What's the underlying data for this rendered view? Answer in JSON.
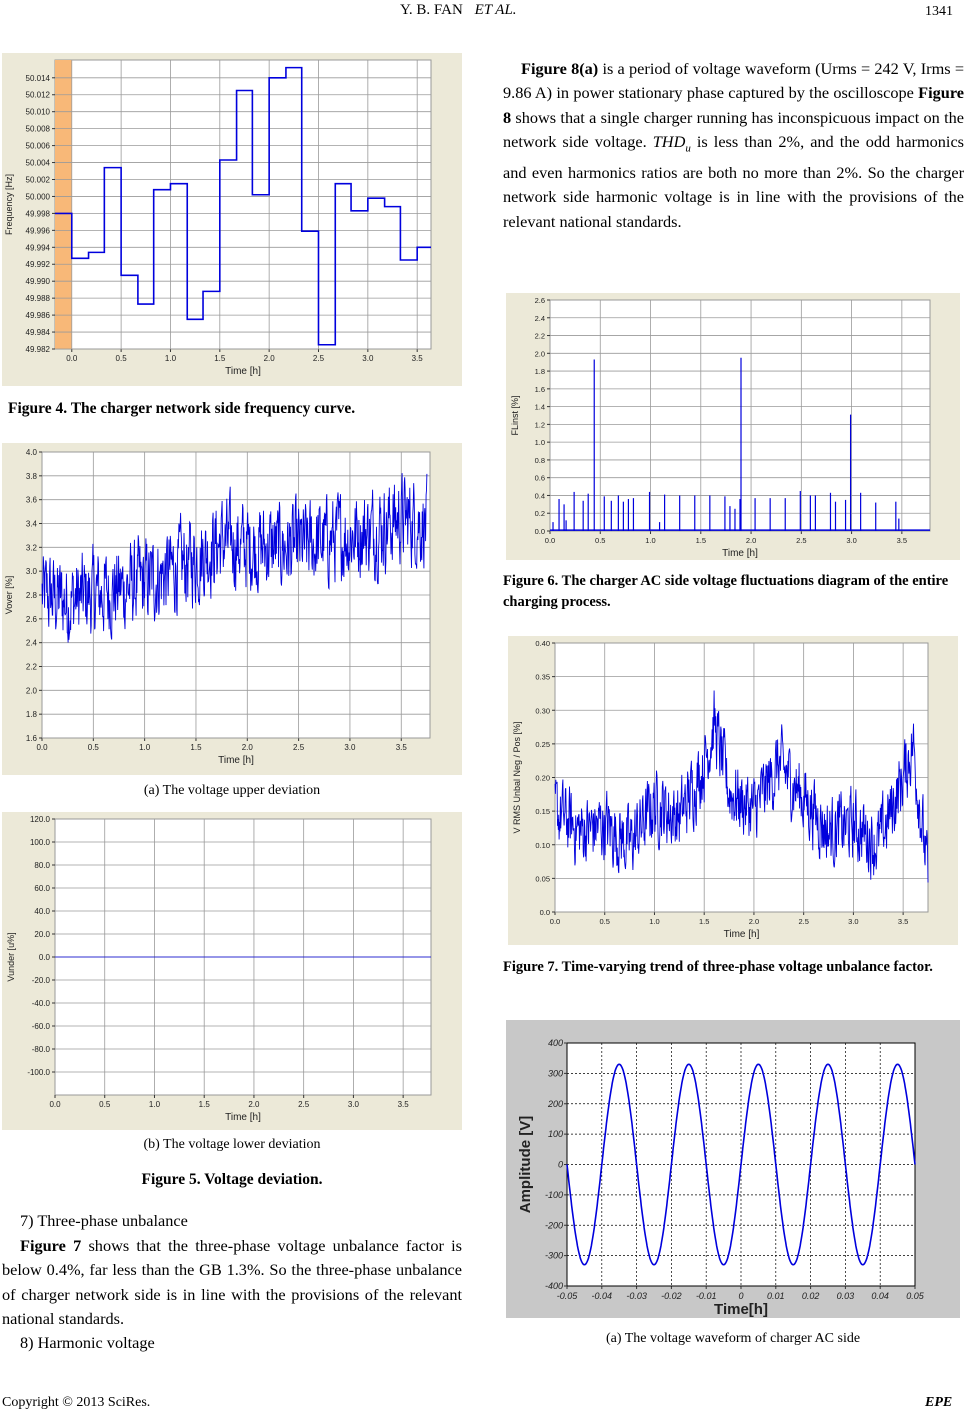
{
  "header": {
    "authors": "Y. B. FAN",
    "etal": "ET AL.",
    "page_number": "1341"
  },
  "left_column": {
    "figure4_caption": "Figure 4. The charger network side frequency curve.",
    "figure5a_caption": "(a) The voltage upper deviation",
    "figure5b_caption": "(b) The voltage lower deviation",
    "figure5_caption": "Figure 5. Voltage deviation.",
    "section7_heading": "7) Three-phase unbalance",
    "section7_ref": "Figure 7",
    "section7_text": " shows that the three-phase voltage unbalance factor is below 0.4%, far less than the GB 1.3%. So the three-phase unbalance of charger network side is in line with the provisions of the relevant national standards.",
    "section8_heading": "8) Harmonic voltage"
  },
  "right_column": {
    "para_ref1": "Figure 8(a)",
    "para_text1": " is a period of voltage waveform (Urms = 242 V, Irms = 9.86 A) in power stationary phase captured by the oscilloscope ",
    "para_ref2": "Figure 8",
    "para_text2": " shows that a single charger running has inconspicuous impact on the network side voltage. ",
    "para_thd": "THD",
    "para_thd_sub": "u",
    "para_text3": " is less than 2%, and the odd harmonics and even harmonics ratios are both no more than 2%. So the charger network side harmonic voltage is in line with the provisions of the relevant national standards.",
    "figure6_caption": "Figure 6. The charger AC side voltage fluctuations diagram of the entire charging process.",
    "figure7_caption": "Figure 7. Time-varying trend of three-phase voltage unbalance factor.",
    "figure8a_caption": "(a) The voltage waveform of charger AC side"
  },
  "footer": {
    "copyright": "Copyright © 2013 SciRes.",
    "journal": "EPE"
  },
  "colors": {
    "series": "#0000dd",
    "panel_bg": "#ece9d8",
    "highlight": "#f8b878",
    "scope_bg": "#c8c8c8"
  },
  "chart_data": [
    {
      "id": "fig4",
      "type": "line",
      "style": "step",
      "xlabel": "Time [h]",
      "ylabel": "Frequency [Hz]",
      "xlim": [
        -0.17,
        3.64
      ],
      "ylim": [
        49.982,
        50.0161
      ],
      "xticks": [
        "0.0",
        "0.5",
        "1.0",
        "1.5",
        "2.0",
        "2.5",
        "3.0",
        "3.5"
      ],
      "yticks": [
        "49.982",
        "49.984",
        "49.986",
        "49.988",
        "49.990",
        "49.992",
        "49.994",
        "49.996",
        "49.998",
        "50.000",
        "50.002",
        "50.004",
        "50.006",
        "50.008",
        "50.010",
        "50.012",
        "50.014"
      ],
      "highlight_range": [
        -0.17,
        0.0
      ],
      "steps": [
        [
          -0.17,
          49.998
        ],
        [
          0.0,
          49.9927
        ],
        [
          0.17,
          49.9934
        ],
        [
          0.33,
          50.0034
        ],
        [
          0.5,
          49.9907
        ],
        [
          0.67,
          49.9873
        ],
        [
          0.83,
          50.0008
        ],
        [
          1.0,
          50.0015
        ],
        [
          1.17,
          49.9855
        ],
        [
          1.33,
          49.9888
        ],
        [
          1.5,
          50.0043
        ],
        [
          1.67,
          50.0125
        ],
        [
          1.83,
          50.0002
        ],
        [
          2.0,
          50.014
        ],
        [
          2.17,
          50.0152
        ],
        [
          2.33,
          49.9959
        ],
        [
          2.5,
          49.9825
        ],
        [
          2.67,
          50.0015
        ],
        [
          2.83,
          49.9983
        ],
        [
          3.0,
          49.9998
        ],
        [
          3.17,
          49.9988
        ],
        [
          3.33,
          49.9925
        ],
        [
          3.5,
          49.994
        ]
      ],
      "x_end": 3.64
    },
    {
      "id": "fig5a",
      "type": "line",
      "style": "noisy",
      "xlabel": "Time [h]",
      "ylabel": "Vover [%]",
      "xlim": [
        0,
        3.78
      ],
      "ylim": [
        1.6,
        4.0
      ],
      "xticks": [
        "0.0",
        "0.5",
        "1.0",
        "1.5",
        "2.0",
        "2.5",
        "3.0",
        "3.5"
      ],
      "yticks": [
        "1.6",
        "1.8",
        "2.0",
        "2.2",
        "2.4",
        "2.6",
        "2.8",
        "3.0",
        "3.2",
        "3.4",
        "3.6",
        "3.8",
        "4.0"
      ],
      "trend": [
        [
          0,
          2.8
        ],
        [
          0.25,
          2.75
        ],
        [
          0.5,
          2.8
        ],
        [
          0.75,
          2.85
        ],
        [
          1.0,
          2.9
        ],
        [
          1.25,
          3.0
        ],
        [
          1.5,
          3.1
        ],
        [
          1.75,
          3.25
        ],
        [
          2.0,
          3.2
        ],
        [
          2.25,
          3.2
        ],
        [
          2.5,
          3.2
        ],
        [
          2.75,
          3.25
        ],
        [
          3.0,
          3.3
        ],
        [
          3.25,
          3.35
        ],
        [
          3.5,
          3.45
        ],
        [
          3.75,
          3.4
        ]
      ],
      "noise": 0.35
    },
    {
      "id": "fig5b",
      "type": "line",
      "style": "constant",
      "xlabel": "Time [h]",
      "ylabel": "Vunder [u%]",
      "xlim": [
        0,
        3.78
      ],
      "ylim": [
        -120,
        120
      ],
      "xticks": [
        "0.0",
        "0.5",
        "1.0",
        "1.5",
        "2.0",
        "2.5",
        "3.0",
        "3.5"
      ],
      "yticks": [
        "-100.0",
        "-80.0",
        "-60.0",
        "-40.0",
        "-20.0",
        "0.0",
        "20.0",
        "40.0",
        "60.0",
        "80.0",
        "100.0",
        "120.0"
      ],
      "value": 0.0
    },
    {
      "id": "fig6",
      "type": "bar",
      "style": "spikes",
      "xlabel": "Time [h]",
      "ylabel": "FLinst [%]",
      "xlim": [
        0,
        3.78
      ],
      "ylim": [
        0,
        2.6
      ],
      "xticks": [
        "0.0",
        "0.5",
        "1.0",
        "1.5",
        "2.0",
        "2.5",
        "3.0",
        "3.5"
      ],
      "yticks": [
        "0.0",
        "0.2",
        "0.4",
        "0.6",
        "0.8",
        "1.0",
        "1.2",
        "1.4",
        "1.6",
        "1.8",
        "2.0",
        "2.2",
        "2.4",
        "2.6"
      ],
      "spikes": [
        [
          0.03,
          0.1
        ],
        [
          0.09,
          0.36
        ],
        [
          0.14,
          0.3
        ],
        [
          0.16,
          0.12
        ],
        [
          0.24,
          0.44
        ],
        [
          0.33,
          0.34
        ],
        [
          0.38,
          0.42
        ],
        [
          0.44,
          1.93
        ],
        [
          0.54,
          0.39
        ],
        [
          0.61,
          0.34
        ],
        [
          0.68,
          0.4
        ],
        [
          0.73,
          0.33
        ],
        [
          0.78,
          0.36
        ],
        [
          0.83,
          0.37
        ],
        [
          0.99,
          0.44
        ],
        [
          1.09,
          0.1
        ],
        [
          1.14,
          0.41
        ],
        [
          1.29,
          0.4
        ],
        [
          1.44,
          0.4
        ],
        [
          1.59,
          0.4
        ],
        [
          1.74,
          0.39
        ],
        [
          1.79,
          0.28
        ],
        [
          1.84,
          0.25
        ],
        [
          1.89,
          0.36
        ],
        [
          1.9,
          1.95
        ],
        [
          2.04,
          0.37
        ],
        [
          2.19,
          0.37
        ],
        [
          2.34,
          0.37
        ],
        [
          2.49,
          0.45
        ],
        [
          2.59,
          0.4
        ],
        [
          2.64,
          0.4
        ],
        [
          2.79,
          0.43
        ],
        [
          2.84,
          0.33
        ],
        [
          2.94,
          0.35
        ],
        [
          2.99,
          1.31
        ],
        [
          3.09,
          0.43
        ],
        [
          3.24,
          0.32
        ],
        [
          3.44,
          0.33
        ],
        [
          3.47,
          0.14
        ]
      ]
    },
    {
      "id": "fig7",
      "type": "line",
      "style": "noisy",
      "xlabel": "Time [h]",
      "ylabel": "V RMS Unbal Neg / Pos [%]",
      "xlim": [
        0,
        3.75
      ],
      "ylim": [
        0,
        0.4
      ],
      "xticks": [
        "0.0",
        "0.5",
        "1.0",
        "1.5",
        "2.0",
        "2.5",
        "3.0",
        "3.5"
      ],
      "yticks": [
        "0.0",
        "0.05",
        "0.10",
        "0.15",
        "0.20",
        "0.25",
        "0.30",
        "0.35",
        "0.40"
      ],
      "trend": [
        [
          0,
          0.15
        ],
        [
          0.25,
          0.12
        ],
        [
          0.5,
          0.13
        ],
        [
          0.75,
          0.1
        ],
        [
          1.0,
          0.16
        ],
        [
          1.25,
          0.14
        ],
        [
          1.5,
          0.22
        ],
        [
          1.6,
          0.28
        ],
        [
          1.75,
          0.18
        ],
        [
          2.0,
          0.15
        ],
        [
          2.25,
          0.22
        ],
        [
          2.5,
          0.17
        ],
        [
          2.75,
          0.12
        ],
        [
          3.0,
          0.13
        ],
        [
          3.25,
          0.1
        ],
        [
          3.5,
          0.2
        ],
        [
          3.6,
          0.25
        ],
        [
          3.75,
          0.05
        ]
      ],
      "noise": 0.05
    },
    {
      "id": "fig8",
      "type": "line",
      "style": "sine",
      "xlabel": "Time[h]",
      "ylabel": "Amplitude [V]",
      "xlim": [
        -0.05,
        0.05
      ],
      "ylim": [
        -400,
        400
      ],
      "xticks": [
        "-0.05",
        "-0.04",
        "-0.03",
        "-0.02",
        "-0.01",
        "0",
        "0.01",
        "0.02",
        "0.03",
        "0.04",
        "0.05"
      ],
      "yticks": [
        "-400",
        "-300",
        "-200",
        "-100",
        "0",
        "100",
        "200",
        "300",
        "400"
      ],
      "amplitude": 330,
      "frequency_hz": 50,
      "phase_zero_at": -0.05
    }
  ]
}
